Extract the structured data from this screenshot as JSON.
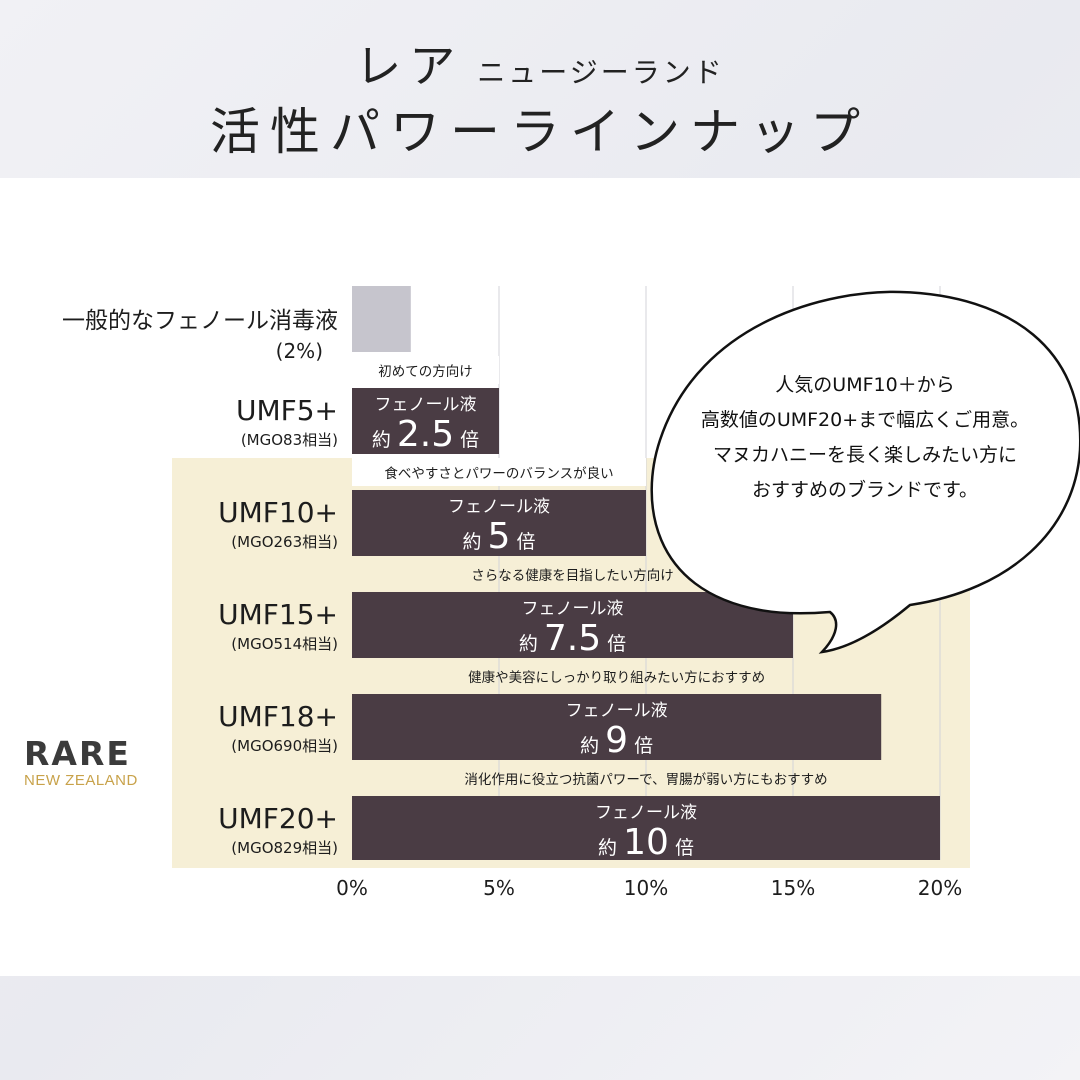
{
  "header": {
    "title_main": "レア",
    "title_sub": "ニュージーランド",
    "title_line2": "活性パワーラインナップ"
  },
  "brand": {
    "name": "RARE",
    "sub": "NEW ZEALAND"
  },
  "speech_bubble": [
    "人気のUMF10＋から",
    "高数値のUMF20+まで幅広くご用意。",
    "マヌカハニーを長く楽しみたい方に",
    "おすすめのブランドです。"
  ],
  "chart_data": {
    "type": "bar",
    "orientation": "horizontal",
    "xlim": [
      0,
      20
    ],
    "x_ticks": [
      "0%",
      "5%",
      "10%",
      "15%",
      "20%"
    ],
    "grid": true,
    "categories": [
      {
        "label": "一般的なフェノール消毒液",
        "sublabel": "(2%)",
        "value": 2,
        "note": "",
        "bar_label": "",
        "prefix": "",
        "multiplier": "",
        "suffix": "",
        "color": "#c6c5cd"
      },
      {
        "label": "UMF5+",
        "sublabel": "(MGO83相当)",
        "value": 5,
        "note": "初めての方向け",
        "bar_label": "フェノール液",
        "prefix": "約",
        "multiplier": "2.5",
        "suffix": "倍",
        "color": "#4a3c44"
      },
      {
        "label": "UMF10+",
        "sublabel": "(MGO263相当)",
        "value": 10,
        "note": "食べやすさとパワーのバランスが良い",
        "bar_label": "フェノール液",
        "prefix": "約",
        "multiplier": "5",
        "suffix": "倍",
        "color": "#4a3c44"
      },
      {
        "label": "UMF15+",
        "sublabel": "(MGO514相当)",
        "value": 15,
        "note": "さらなる健康を目指したい方向け",
        "bar_label": "フェノール液",
        "prefix": "約",
        "multiplier": "7.5",
        "suffix": "倍",
        "color": "#4a3c44"
      },
      {
        "label": "UMF18+",
        "sublabel": "(MGO690相当)",
        "value": 18,
        "note": "健康や美容にしっかり取り組みたい方におすすめ",
        "bar_label": "フェノール液",
        "prefix": "約",
        "multiplier": "9",
        "suffix": "倍",
        "color": "#4a3c44"
      },
      {
        "label": "UMF20+",
        "sublabel": "(MGO829相当)",
        "value": 20,
        "note": "消化作用に役立つ抗菌パワーで、胃腸が弱い方にもおすすめ",
        "bar_label": "フェノール液",
        "prefix": "約",
        "multiplier": "10",
        "suffix": "倍",
        "color": "#4a3c44"
      }
    ]
  }
}
